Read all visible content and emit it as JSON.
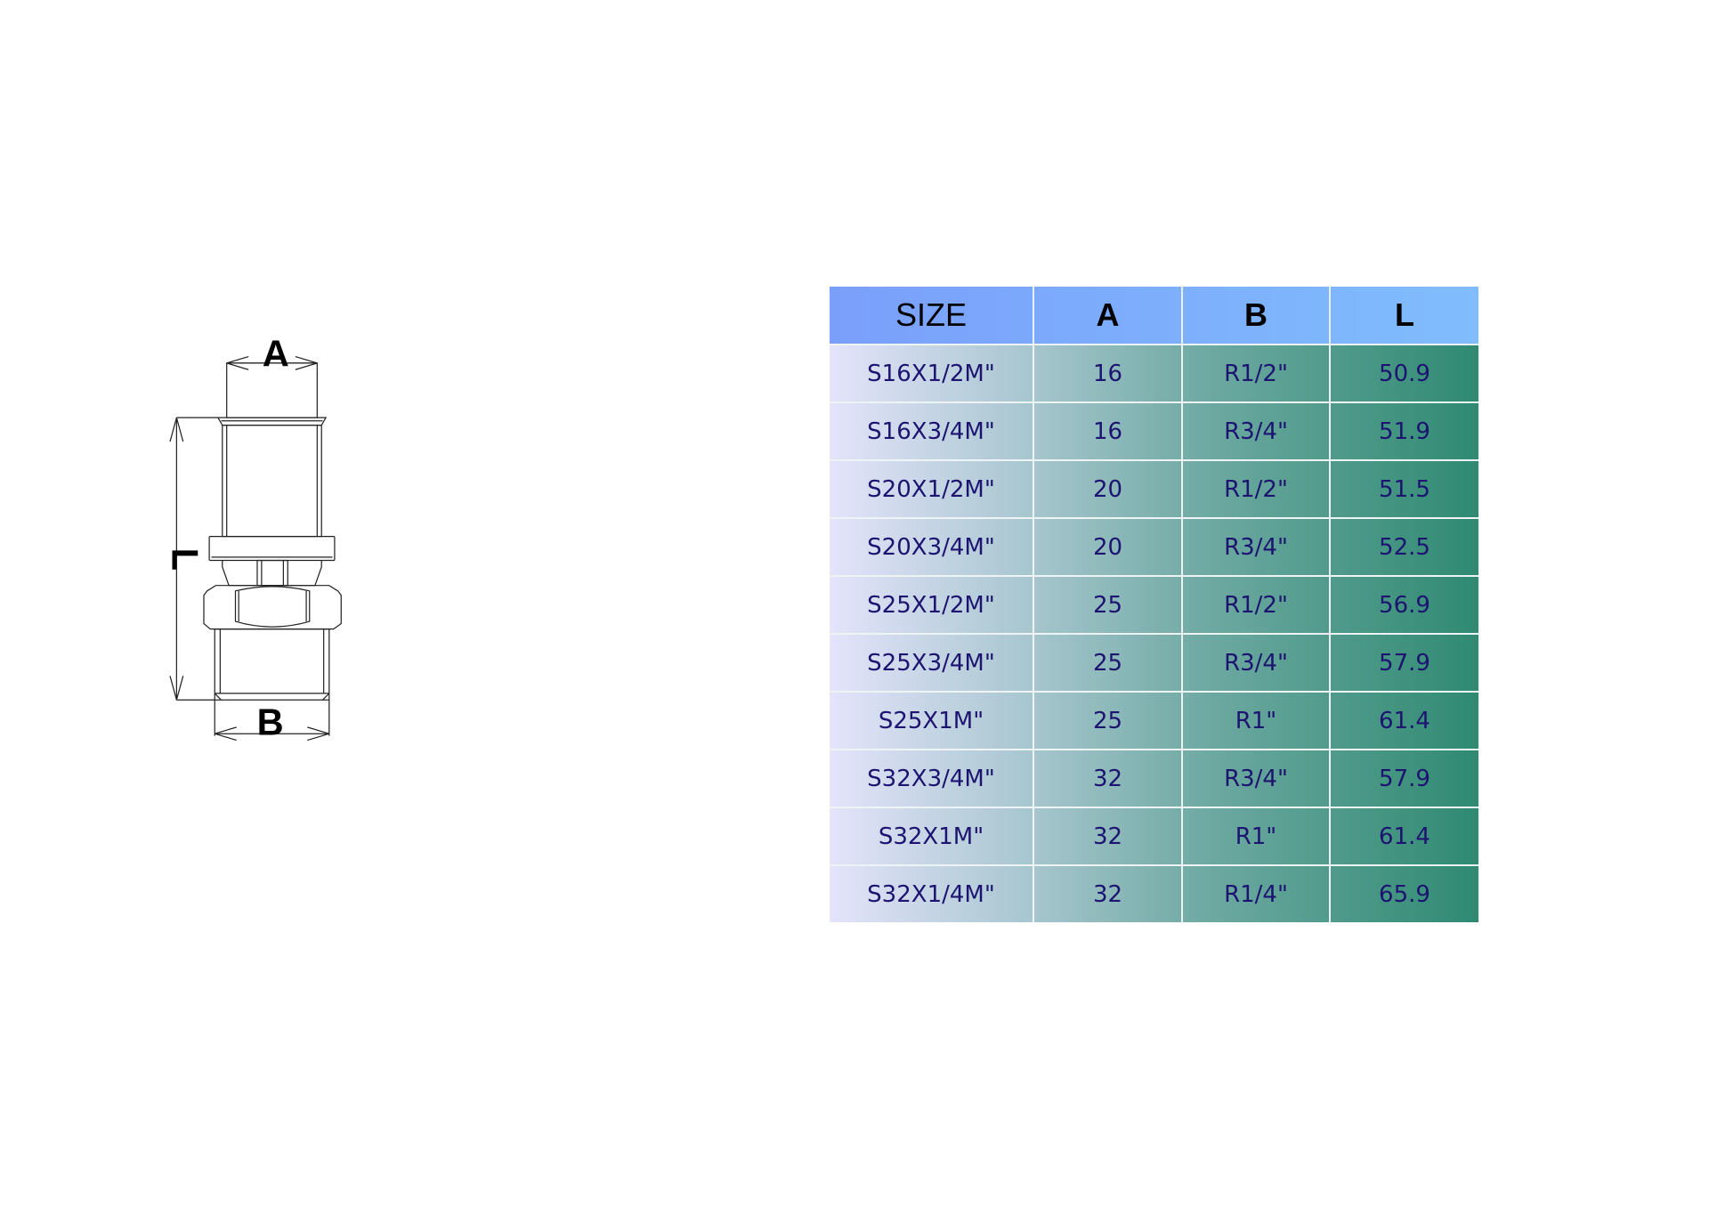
{
  "drawing": {
    "dimension_labels": {
      "a": "A",
      "b": "B",
      "l": "L"
    }
  },
  "table": {
    "headers": [
      "SIZE",
      "A",
      "B",
      "L"
    ],
    "rows": [
      [
        "S16X1/2M\"",
        "16",
        "R1/2\"",
        "50.9"
      ],
      [
        "S16X3/4M\"",
        "16",
        "R3/4\"",
        "51.9"
      ],
      [
        "S20X1/2M\"",
        "20",
        "R1/2\"",
        "51.5"
      ],
      [
        "S20X3/4M\"",
        "20",
        "R3/4\"",
        "52.5"
      ],
      [
        "S25X1/2M\"",
        "25",
        "R1/2\"",
        "56.9"
      ],
      [
        "S25X3/4M\"",
        "25",
        "R3/4\"",
        "57.9"
      ],
      [
        "S25X1M\"",
        "25",
        "R1\"",
        "61.4"
      ],
      [
        "S32X3/4M\"",
        "32",
        "R3/4\"",
        "57.9"
      ],
      [
        "S32X1M\"",
        "32",
        "R1\"",
        "61.4"
      ],
      [
        "S32X1/4M\"",
        "32",
        "R1/4\"",
        "65.9"
      ]
    ],
    "colors": {
      "header_start": "#7a9ffb",
      "header_end": "#80bdfd",
      "row_start": "#e4e4fb",
      "row_end": "#2f8a72",
      "text": "#1c1470"
    }
  }
}
